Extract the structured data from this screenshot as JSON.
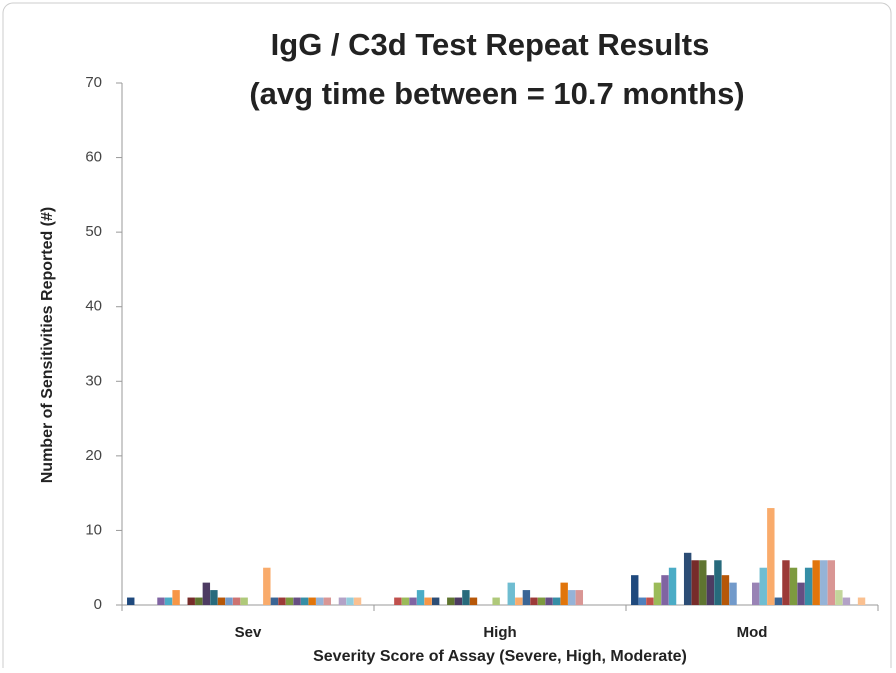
{
  "chart_data": {
    "type": "bar",
    "title": "IgG / C3d Test Repeat Results",
    "subtitle": "(avg time between = 10.7 months)",
    "x_label": "Severity Score of Assay (Severe, High,  Moderate)",
    "y_label": "Number of  Sensitivities Reported (#)",
    "categories": [
      "Sev",
      "High",
      "Mod"
    ],
    "ylim": [
      0,
      70
    ],
    "yticks": [
      0,
      10,
      20,
      30,
      40,
      50,
      60,
      70
    ],
    "series": [
      {
        "color": "#1f497d",
        "values": [
          1,
          0,
          4
        ]
      },
      {
        "color": "#4f81bd",
        "values": [
          0,
          0,
          1
        ]
      },
      {
        "color": "#c0504d",
        "values": [
          0,
          1,
          1
        ]
      },
      {
        "color": "#9bbb59",
        "values": [
          0,
          1,
          3
        ]
      },
      {
        "color": "#8064a2",
        "values": [
          1,
          1,
          4
        ]
      },
      {
        "color": "#4bacc6",
        "values": [
          1,
          2,
          5
        ]
      },
      {
        "color": "#f79646",
        "values": [
          2,
          1,
          0
        ]
      },
      {
        "color": "#2c4d75",
        "values": [
          0,
          1,
          7
        ]
      },
      {
        "color": "#772c2a",
        "values": [
          1,
          0,
          6
        ]
      },
      {
        "color": "#5f7530",
        "values": [
          1,
          1,
          6
        ]
      },
      {
        "color": "#4d3b62",
        "values": [
          3,
          1,
          4
        ]
      },
      {
        "color": "#276a7c",
        "values": [
          2,
          2,
          6
        ]
      },
      {
        "color": "#b65708",
        "values": [
          1,
          1,
          4
        ]
      },
      {
        "color": "#729aca",
        "values": [
          1,
          0,
          3
        ]
      },
      {
        "color": "#cd7371",
        "values": [
          1,
          0,
          0
        ]
      },
      {
        "color": "#afc97a",
        "values": [
          1,
          1,
          0
        ]
      },
      {
        "color": "#9983b5",
        "values": [
          0,
          0,
          3
        ]
      },
      {
        "color": "#6fbdd1",
        "values": [
          0,
          3,
          5
        ]
      },
      {
        "color": "#f9ab6b",
        "values": [
          5,
          1,
          13
        ]
      },
      {
        "color": "#3a6595",
        "values": [
          1,
          2,
          1
        ]
      },
      {
        "color": "#9c3a38",
        "values": [
          1,
          1,
          6
        ]
      },
      {
        "color": "#7d9a3f",
        "values": [
          1,
          1,
          5
        ]
      },
      {
        "color": "#664e83",
        "values": [
          1,
          1,
          3
        ]
      },
      {
        "color": "#358ea6",
        "values": [
          1,
          1,
          5
        ]
      },
      {
        "color": "#e1750b",
        "values": [
          1,
          3,
          6
        ]
      },
      {
        "color": "#95b3d7",
        "values": [
          1,
          2,
          6
        ]
      },
      {
        "color": "#d99694",
        "values": [
          1,
          2,
          6
        ]
      },
      {
        "color": "#c3d69b",
        "values": [
          0,
          0,
          2
        ]
      },
      {
        "color": "#b3a2c7",
        "values": [
          1,
          0,
          1
        ]
      },
      {
        "color": "#93cddd",
        "values": [
          1,
          0,
          0
        ]
      },
      {
        "color": "#fac090",
        "values": [
          1,
          0,
          1
        ]
      },
      {
        "color": "#dbe5f1",
        "values": [
          0,
          0,
          0
        ]
      }
    ]
  }
}
